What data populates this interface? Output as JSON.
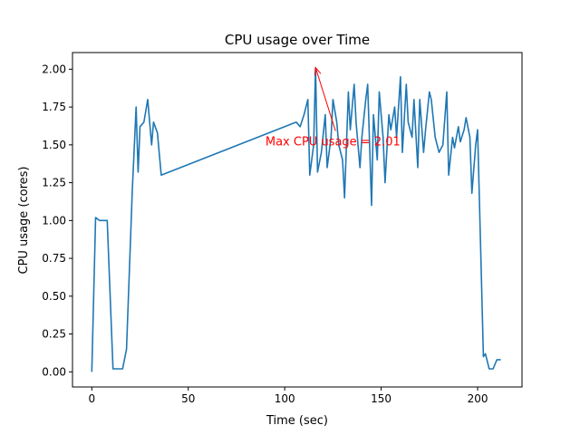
{
  "chart_data": {
    "type": "line",
    "title": "CPU usage over Time",
    "xlabel": "Time (sec)",
    "ylabel": "CPU usage (cores)",
    "xlim": [
      -10,
      223
    ],
    "ylim": [
      -0.1,
      2.11
    ],
    "xticks": [
      0,
      50,
      100,
      150,
      200
    ],
    "xtick_labels": [
      "0",
      "50",
      "100",
      "150",
      "200"
    ],
    "yticks": [
      0.0,
      0.25,
      0.5,
      0.75,
      1.0,
      1.25,
      1.5,
      1.75,
      2.0
    ],
    "ytick_labels": [
      "0.00",
      "0.25",
      "0.50",
      "0.75",
      "1.00",
      "1.25",
      "1.50",
      "1.75",
      "2.00"
    ],
    "grid": false,
    "line_color": "#1f77b4",
    "series": [
      {
        "x": [
          0,
          2,
          4,
          6,
          8,
          11,
          13,
          16,
          18,
          21,
          23,
          24,
          25,
          27,
          29,
          31,
          32,
          34,
          36,
          106,
          108,
          110,
          112,
          113,
          115,
          116,
          117,
          119,
          121,
          122,
          124,
          125,
          127,
          128,
          130,
          131,
          133,
          134,
          136,
          137,
          139,
          140,
          142,
          143,
          145,
          146,
          148,
          149,
          151,
          152,
          154,
          155,
          157,
          158,
          160,
          161,
          163,
          164,
          166,
          167,
          169,
          170,
          172,
          173,
          175,
          176,
          178,
          180,
          182,
          184,
          185,
          187,
          188,
          190,
          191,
          193,
          194,
          196,
          197,
          199,
          200,
          202,
          203,
          204,
          206,
          208,
          209,
          210,
          212
        ],
        "y": [
          0.0,
          1.02,
          1.0,
          1.0,
          1.0,
          0.02,
          0.02,
          0.02,
          0.15,
          1.2,
          1.75,
          1.32,
          1.62,
          1.65,
          1.8,
          1.5,
          1.65,
          1.58,
          1.3,
          1.65,
          1.62,
          1.7,
          1.8,
          1.3,
          1.5,
          2.01,
          1.32,
          1.45,
          1.7,
          1.35,
          1.55,
          1.8,
          1.65,
          1.5,
          1.4,
          1.15,
          1.85,
          1.6,
          1.9,
          1.65,
          1.35,
          1.55,
          1.8,
          1.9,
          1.1,
          1.7,
          1.4,
          1.85,
          1.55,
          1.25,
          1.7,
          1.6,
          1.75,
          1.55,
          1.95,
          1.45,
          1.9,
          1.65,
          1.55,
          1.8,
          1.35,
          1.8,
          1.45,
          1.6,
          1.85,
          1.8,
          1.55,
          1.45,
          1.5,
          1.85,
          1.3,
          1.55,
          1.48,
          1.62,
          1.52,
          1.6,
          1.68,
          1.55,
          1.18,
          1.5,
          1.6,
          0.6,
          0.1,
          0.12,
          0.02,
          0.02,
          0.05,
          0.08,
          0.08
        ]
      }
    ],
    "annotation": {
      "text": "Max CPU usage = 2.01",
      "color": "#ff0000",
      "point": [
        116,
        2.01
      ],
      "text_at": [
        90,
        1.52
      ]
    }
  }
}
